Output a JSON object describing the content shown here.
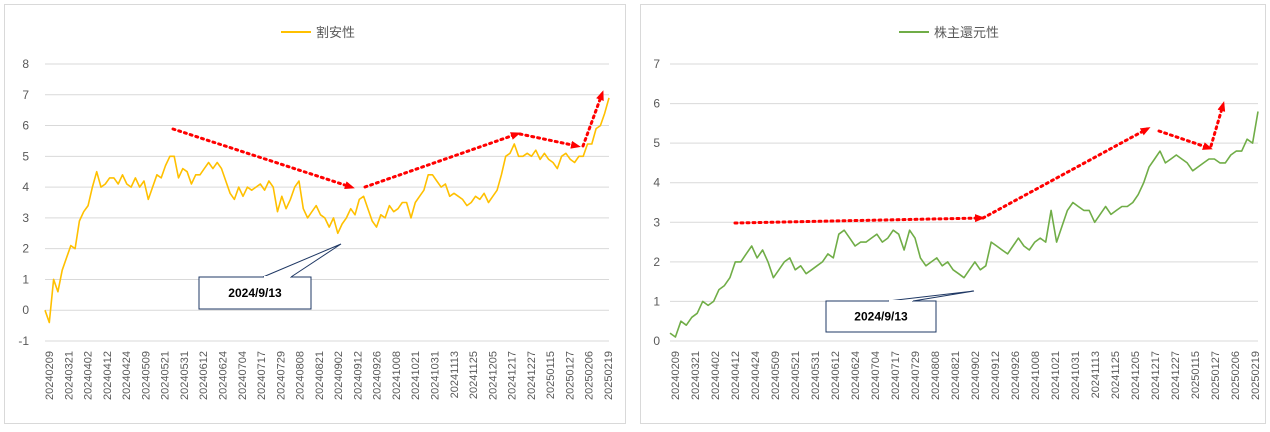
{
  "chart_data": [
    {
      "type": "line",
      "series": [
        {
          "name": "割安性",
          "color": "#FFC000"
        }
      ],
      "ylim": [
        -1,
        8
      ],
      "yticks": [
        "-1",
        "0",
        "1",
        "2",
        "3",
        "4",
        "5",
        "6",
        "7",
        "8"
      ],
      "x_labels": [
        "20240209",
        "20240321",
        "20240402",
        "20240412",
        "20240424",
        "20240509",
        "20240521",
        "20240531",
        "20240612",
        "20240624",
        "20240704",
        "20240717",
        "20240729",
        "20240808",
        "20240821",
        "20240902",
        "20240912",
        "20240926",
        "20241008",
        "20241021",
        "20241031",
        "20241113",
        "20241125",
        "20241205",
        "20241217",
        "20241227",
        "20250115",
        "20250127",
        "20250206",
        "20250219"
      ],
      "values": [
        0.0,
        -0.4,
        1.0,
        0.6,
        1.3,
        1.7,
        2.1,
        2.0,
        2.9,
        3.2,
        3.4,
        4.0,
        4.5,
        4.0,
        4.1,
        4.3,
        4.3,
        4.1,
        4.4,
        4.1,
        4.0,
        4.3,
        4.0,
        4.2,
        3.6,
        4.0,
        4.4,
        4.3,
        4.7,
        5.0,
        5.0,
        4.3,
        4.6,
        4.5,
        4.1,
        4.4,
        4.4,
        4.6,
        4.8,
        4.6,
        4.8,
        4.6,
        4.2,
        3.8,
        3.6,
        4.0,
        3.7,
        4.0,
        3.9,
        4.0,
        4.1,
        3.9,
        4.2,
        4.0,
        3.2,
        3.7,
        3.3,
        3.6,
        4.0,
        4.2,
        3.3,
        3.0,
        3.2,
        3.4,
        3.1,
        3.0,
        2.7,
        3.0,
        2.5,
        2.8,
        3.0,
        3.3,
        3.1,
        3.6,
        3.7,
        3.3,
        2.9,
        2.7,
        3.1,
        3.0,
        3.4,
        3.2,
        3.3,
        3.5,
        3.5,
        3.0,
        3.5,
        3.7,
        3.9,
        4.4,
        4.4,
        4.2,
        4.0,
        4.1,
        3.7,
        3.8,
        3.7,
        3.6,
        3.4,
        3.5,
        3.7,
        3.6,
        3.8,
        3.5,
        3.7,
        3.9,
        4.4,
        5.0,
        5.1,
        5.4,
        5.0,
        5.0,
        5.1,
        5.0,
        5.2,
        4.9,
        5.1,
        4.9,
        4.8,
        4.6,
        5.0,
        5.1,
        4.9,
        4.8,
        5.0,
        5.0,
        5.4,
        5.4,
        5.9,
        6.0,
        6.4,
        6.9
      ],
      "annotations": [
        {
          "text": "2024/9/13"
        }
      ],
      "legend": "top-center",
      "grid": true
    },
    {
      "type": "line",
      "series": [
        {
          "name": "株主還元性",
          "color": "#70AD47"
        }
      ],
      "ylim": [
        0,
        7
      ],
      "yticks": [
        "0",
        "1",
        "2",
        "3",
        "4",
        "5",
        "6",
        "7"
      ],
      "x_labels": [
        "20240209",
        "20240321",
        "20240402",
        "20240412",
        "20240424",
        "20240509",
        "20240521",
        "20240531",
        "20240612",
        "20240624",
        "20240704",
        "20240717",
        "20240729",
        "20240808",
        "20240821",
        "20240902",
        "20240912",
        "20240926",
        "20241008",
        "20241021",
        "20241031",
        "20241113",
        "20241125",
        "20241205",
        "20241217",
        "20241227",
        "20250115",
        "20250127",
        "20250206",
        "20250219"
      ],
      "values": [
        0.2,
        0.1,
        0.5,
        0.4,
        0.6,
        0.7,
        1.0,
        0.9,
        1.0,
        1.3,
        1.4,
        1.6,
        2.0,
        2.0,
        2.2,
        2.4,
        2.1,
        2.3,
        2.0,
        1.6,
        1.8,
        2.0,
        2.1,
        1.8,
        1.9,
        1.7,
        1.8,
        1.9,
        2.0,
        2.2,
        2.1,
        2.7,
        2.8,
        2.6,
        2.4,
        2.5,
        2.5,
        2.6,
        2.7,
        2.5,
        2.6,
        2.8,
        2.7,
        2.3,
        2.8,
        2.6,
        2.1,
        1.9,
        2.0,
        2.1,
        1.9,
        2.0,
        1.8,
        1.7,
        1.6,
        1.8,
        2.0,
        1.8,
        1.9,
        2.5,
        2.4,
        2.3,
        2.2,
        2.4,
        2.6,
        2.4,
        2.3,
        2.5,
        2.6,
        2.5,
        3.3,
        2.5,
        2.9,
        3.3,
        3.5,
        3.4,
        3.3,
        3.3,
        3.0,
        3.2,
        3.4,
        3.2,
        3.3,
        3.4,
        3.4,
        3.5,
        3.7,
        4.0,
        4.4,
        4.6,
        4.8,
        4.5,
        4.6,
        4.7,
        4.6,
        4.5,
        4.3,
        4.4,
        4.5,
        4.6,
        4.6,
        4.5,
        4.5,
        4.7,
        4.8,
        4.8,
        5.1,
        5.0,
        5.8
      ],
      "annotations": [
        {
          "text": "2024/9/13"
        }
      ],
      "legend": "top-center",
      "grid": true
    }
  ]
}
